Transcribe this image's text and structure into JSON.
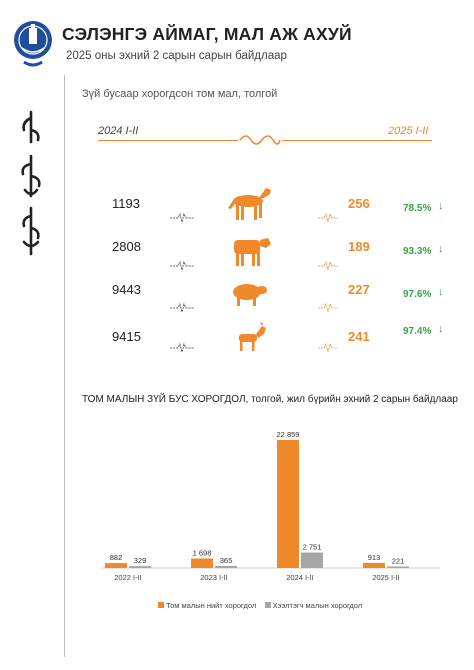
{
  "header": {
    "title": "СЭЛЭНГЭ АЙМАГ, МАЛ АЖ АХУЙ",
    "subtitle": "2025 оны эхний 2 сарын сарын байдлаар"
  },
  "infographic": {
    "title": "Зүй бусаар хорогдсон том мал, толгой",
    "year_left": "2024 I-II",
    "year_right": "2025 I-II",
    "rows": [
      {
        "animal": "horse-icon",
        "v2024": "1193",
        "v2025": "256",
        "pct": "78.5%"
      },
      {
        "animal": "cow-icon",
        "v2024": "2808",
        "v2025": "189",
        "pct": "93.3%"
      },
      {
        "animal": "sheep-icon",
        "v2024": "9443",
        "v2025": "227",
        "pct": "97.6%"
      },
      {
        "animal": "goat-icon",
        "v2024": "9415",
        "v2025": "241",
        "pct": "97.4%"
      }
    ]
  },
  "colors": {
    "orange": "#f0892c",
    "gray": "#a6a6a6",
    "green": "#3aa24a"
  },
  "chart_data": {
    "type": "bar",
    "title": "ТОМ МАЛЫН ЗҮЙ БУС ХОРОГДОЛ, толгой, жил бүрийн эхний 2 сарын байдлаар",
    "categories": [
      "2022 I-II",
      "2023 I-II",
      "2024 I-II",
      "2025 I-II"
    ],
    "series": [
      {
        "name": "Том малын нийт хорогдол",
        "values": [
          882,
          1698,
          22859,
          913
        ],
        "labels": [
          "882",
          "1 698",
          "22 859",
          "913"
        ],
        "color": "#f0892c"
      },
      {
        "name": "Хээлтэгч малын хорогдол",
        "values": [
          329,
          365,
          2751,
          221
        ],
        "labels": [
          "329",
          "365",
          "2 751",
          "221"
        ],
        "color": "#a6a6a6"
      }
    ],
    "ylim": [
      0,
      22859
    ],
    "legend": "bottom"
  }
}
